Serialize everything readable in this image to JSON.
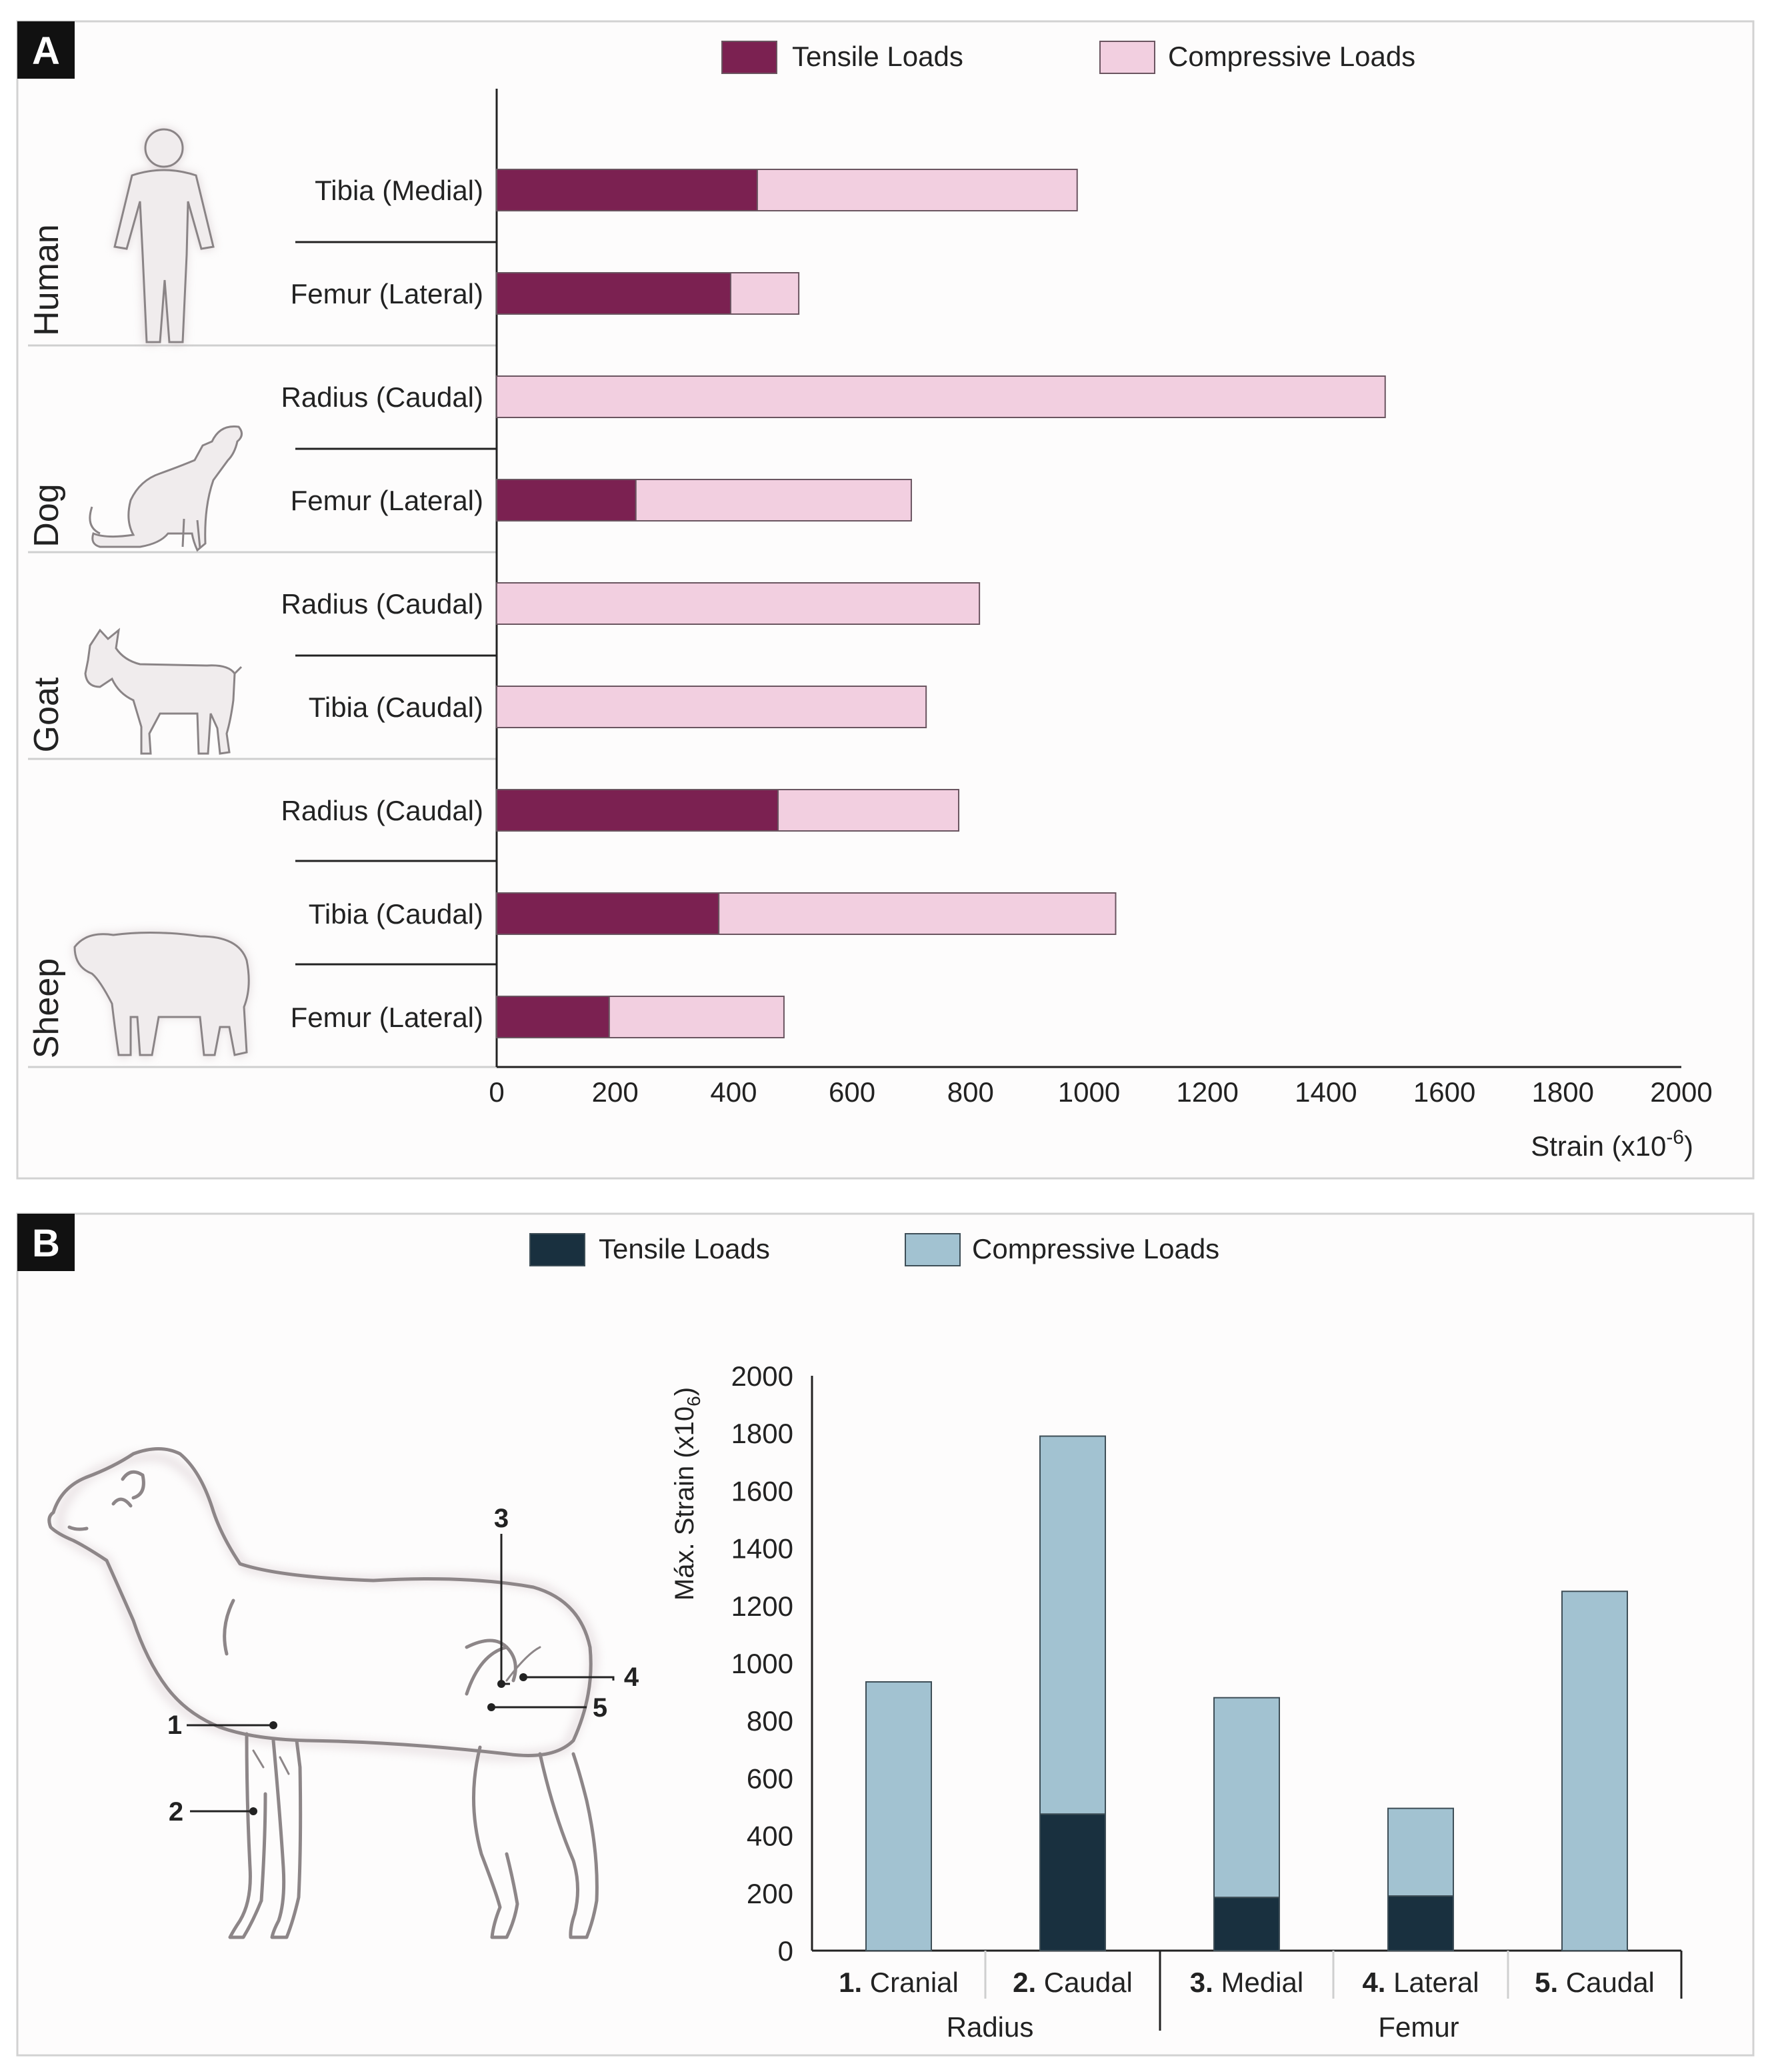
{
  "colors": {
    "a_tensile": "#7b2151",
    "a_compressive": "#f2cfe0",
    "a_bar_stroke": "#6a5560",
    "b_tensile": "#19303f",
    "b_compressive": "#a2c2d1",
    "b_bar_stroke": "#3e4e57",
    "panel_bg": "#fdfcfc",
    "panel_border": "#d2d2d2",
    "label_box": "#111111",
    "silhouette": "#f0eced",
    "outline": "#8a8486",
    "text": "#222222"
  },
  "chart_data": [
    {
      "panel_label": "A",
      "type": "bar",
      "orientation": "horizontal",
      "stacked": true,
      "legend": [
        "Tensile Loads",
        "Compressive Loads"
      ],
      "legend_position": "top",
      "xlabel_main": "Strain (x10",
      "xlabel_exp": "-6",
      "xlabel_close": ")",
      "xlim": [
        0,
        2000
      ],
      "xticks": [
        "0",
        "200",
        "400",
        "600",
        "800",
        "1000",
        "1200",
        "1400",
        "1600",
        "1800",
        "2000"
      ],
      "groups": [
        {
          "name": "Human",
          "icon": "human-icon"
        },
        {
          "name": "Dog",
          "icon": "dog-icon"
        },
        {
          "name": "Goat",
          "icon": "goat-icon"
        },
        {
          "name": "Sheep",
          "icon": "sheep-icon"
        }
      ],
      "bars": [
        {
          "group": "Human",
          "label": "Tibia (Medial)",
          "tensile": 440,
          "total": 980
        },
        {
          "group": "Human",
          "label": "Femur (Lateral)",
          "tensile": 395,
          "total": 510
        },
        {
          "group": "Dog",
          "label": "Radius (Caudal)",
          "tensile": 0,
          "total": 1500
        },
        {
          "group": "Dog",
          "label": "Femur (Lateral)",
          "tensile": 235,
          "total": 700
        },
        {
          "group": "Goat",
          "label": "Radius (Caudal)",
          "tensile": 0,
          "total": 815
        },
        {
          "group": "Goat",
          "label": "Tibia (Caudal)",
          "tensile": 0,
          "total": 725
        },
        {
          "group": "Sheep",
          "label": "Radius (Caudal)",
          "tensile": 475,
          "total": 780
        },
        {
          "group": "Sheep",
          "label": "Tibia (Caudal)",
          "tensile": 375,
          "total": 1045
        },
        {
          "group": "Sheep",
          "label": "Femur (Lateral)",
          "tensile": 190,
          "total": 485
        }
      ]
    },
    {
      "panel_label": "B",
      "type": "bar",
      "orientation": "vertical",
      "stacked": true,
      "legend": [
        "Tensile Loads",
        "Compressive Loads"
      ],
      "legend_position": "top",
      "ylabel_main": "Máx. Strain (x10",
      "ylabel_sub": "6",
      "ylabel_close": ")",
      "ylim": [
        0,
        2000
      ],
      "yticks": [
        "0",
        "200",
        "400",
        "600",
        "800",
        "1000",
        "1200",
        "1400",
        "1600",
        "1800",
        "2000"
      ],
      "bars": [
        {
          "num": "1.",
          "label": "Cranial",
          "tensile": 0,
          "total": 935
        },
        {
          "num": "2.",
          "label": "Caudal",
          "tensile": 475,
          "total": 1790
        },
        {
          "num": "3.",
          "label": "Medial",
          "tensile": 185,
          "total": 880
        },
        {
          "num": "4.",
          "label": "Lateral",
          "tensile": 190,
          "total": 495
        },
        {
          "num": "5.",
          "label": "Caudal",
          "tensile": 0,
          "total": 1250
        }
      ],
      "bone_groups": [
        "Radius",
        "Femur"
      ],
      "diagram_markers": [
        "1",
        "2",
        "3",
        "4",
        "5"
      ]
    }
  ]
}
